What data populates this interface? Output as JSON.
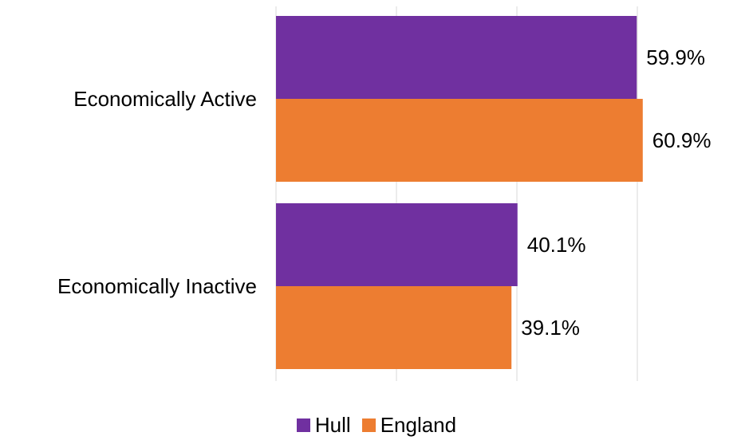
{
  "chart_data": {
    "type": "bar",
    "orientation": "horizontal",
    "categories": [
      "Economically Active",
      "Economically Inactive"
    ],
    "series": [
      {
        "name": "Hull",
        "values": [
          59.9,
          40.1
        ],
        "color": "#7030a0"
      },
      {
        "name": "England",
        "values": [
          60.9,
          39.1
        ],
        "color": "#ed7d31"
      }
    ],
    "data_labels": [
      [
        "59.9%",
        "40.1%"
      ],
      [
        "60.9%",
        "39.1%"
      ]
    ],
    "xlim": [
      0,
      80
    ],
    "x_gridlines": [
      0,
      20,
      40,
      60,
      80
    ],
    "grid": true,
    "title": "",
    "xlabel": "",
    "ylabel": "",
    "legend_position": "bottom"
  }
}
